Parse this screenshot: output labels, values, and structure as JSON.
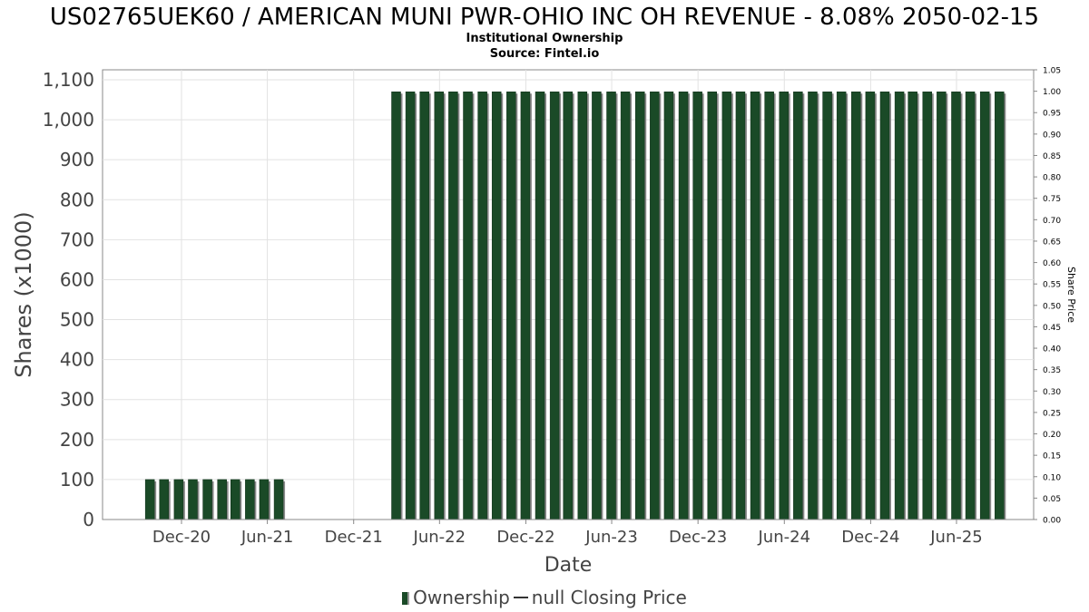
{
  "chart_data": {
    "type": "bar",
    "title": "US02765UEK60 / AMERICAN MUNI PWR-OHIO INC OH REVENUE - 8.08% 2050-02-15",
    "subtitle": "Institutional Ownership",
    "source": "Source: Fintel.io",
    "xlabel": "Date",
    "ylabel": "Shares (x1000)",
    "ylabel_right": "Share Price",
    "ylim": [
      0,
      1100
    ],
    "ylim_right": [
      0,
      1.05
    ],
    "y_ticks": [
      "0",
      "100",
      "200",
      "300",
      "400",
      "500",
      "600",
      "700",
      "800",
      "900",
      "1,000",
      "1,100"
    ],
    "y_right_ticks": [
      "0.00",
      "0.05",
      "0.10",
      "0.15",
      "0.20",
      "0.25",
      "0.30",
      "0.35",
      "0.40",
      "0.45",
      "0.50",
      "0.55",
      "0.60",
      "0.65",
      "0.70",
      "0.75",
      "0.80",
      "0.85",
      "0.90",
      "0.95",
      "1.00",
      "1.05"
    ],
    "x_ticks": [
      "Dec-20",
      "Jun-21",
      "Dec-21",
      "Jun-22",
      "Dec-22",
      "Jun-23",
      "Dec-23",
      "Jun-24",
      "Dec-24",
      "Jun-25"
    ],
    "grid": true,
    "legend_position": "bottom",
    "series": [
      {
        "name": "Ownership",
        "color": "#1a4a27",
        "x": [
          "2020-09-25",
          "2020-10-25",
          "2020-11-25",
          "2020-12-25",
          "2021-01-25",
          "2021-02-25",
          "2021-03-25",
          "2021-04-25",
          "2021-05-25",
          "2021-06-25",
          "2022-03-01",
          "2022-03-31",
          "2022-04-30",
          "2022-05-31",
          "2022-06-30",
          "2022-07-31",
          "2022-08-31",
          "2022-09-30",
          "2022-10-31",
          "2022-11-30",
          "2022-12-31",
          "2023-01-31",
          "2023-02-28",
          "2023-03-31",
          "2023-04-30",
          "2023-05-31",
          "2023-06-30",
          "2023-07-31",
          "2023-08-31",
          "2023-09-30",
          "2023-10-31",
          "2023-11-30",
          "2023-12-31",
          "2024-01-31",
          "2024-02-29",
          "2024-03-31",
          "2024-04-30",
          "2024-05-31",
          "2024-06-30",
          "2024-07-31",
          "2024-08-31",
          "2024-09-30",
          "2024-10-31",
          "2024-11-30",
          "2024-12-31",
          "2025-01-31",
          "2025-02-28",
          "2025-03-31",
          "2025-04-30",
          "2025-05-31",
          "2025-06-30",
          "2025-07-31",
          "2025-08-31"
        ],
        "values": [
          100,
          100,
          100,
          100,
          100,
          100,
          100,
          100,
          100,
          100,
          1070,
          1070,
          1070,
          1070,
          1070,
          1070,
          1070,
          1070,
          1070,
          1070,
          1070,
          1070,
          1070,
          1070,
          1070,
          1070,
          1070,
          1070,
          1070,
          1070,
          1070,
          1070,
          1070,
          1070,
          1070,
          1070,
          1070,
          1070,
          1070,
          1070,
          1070,
          1070,
          1070,
          1070,
          1070,
          1070,
          1070,
          1070,
          1070,
          1070,
          1070,
          1070,
          1070
        ]
      },
      {
        "name": "null Closing Price",
        "color": "#333333",
        "values": []
      }
    ]
  },
  "legend": {
    "ownership_label": "Ownership",
    "price_label": "null Closing Price"
  }
}
